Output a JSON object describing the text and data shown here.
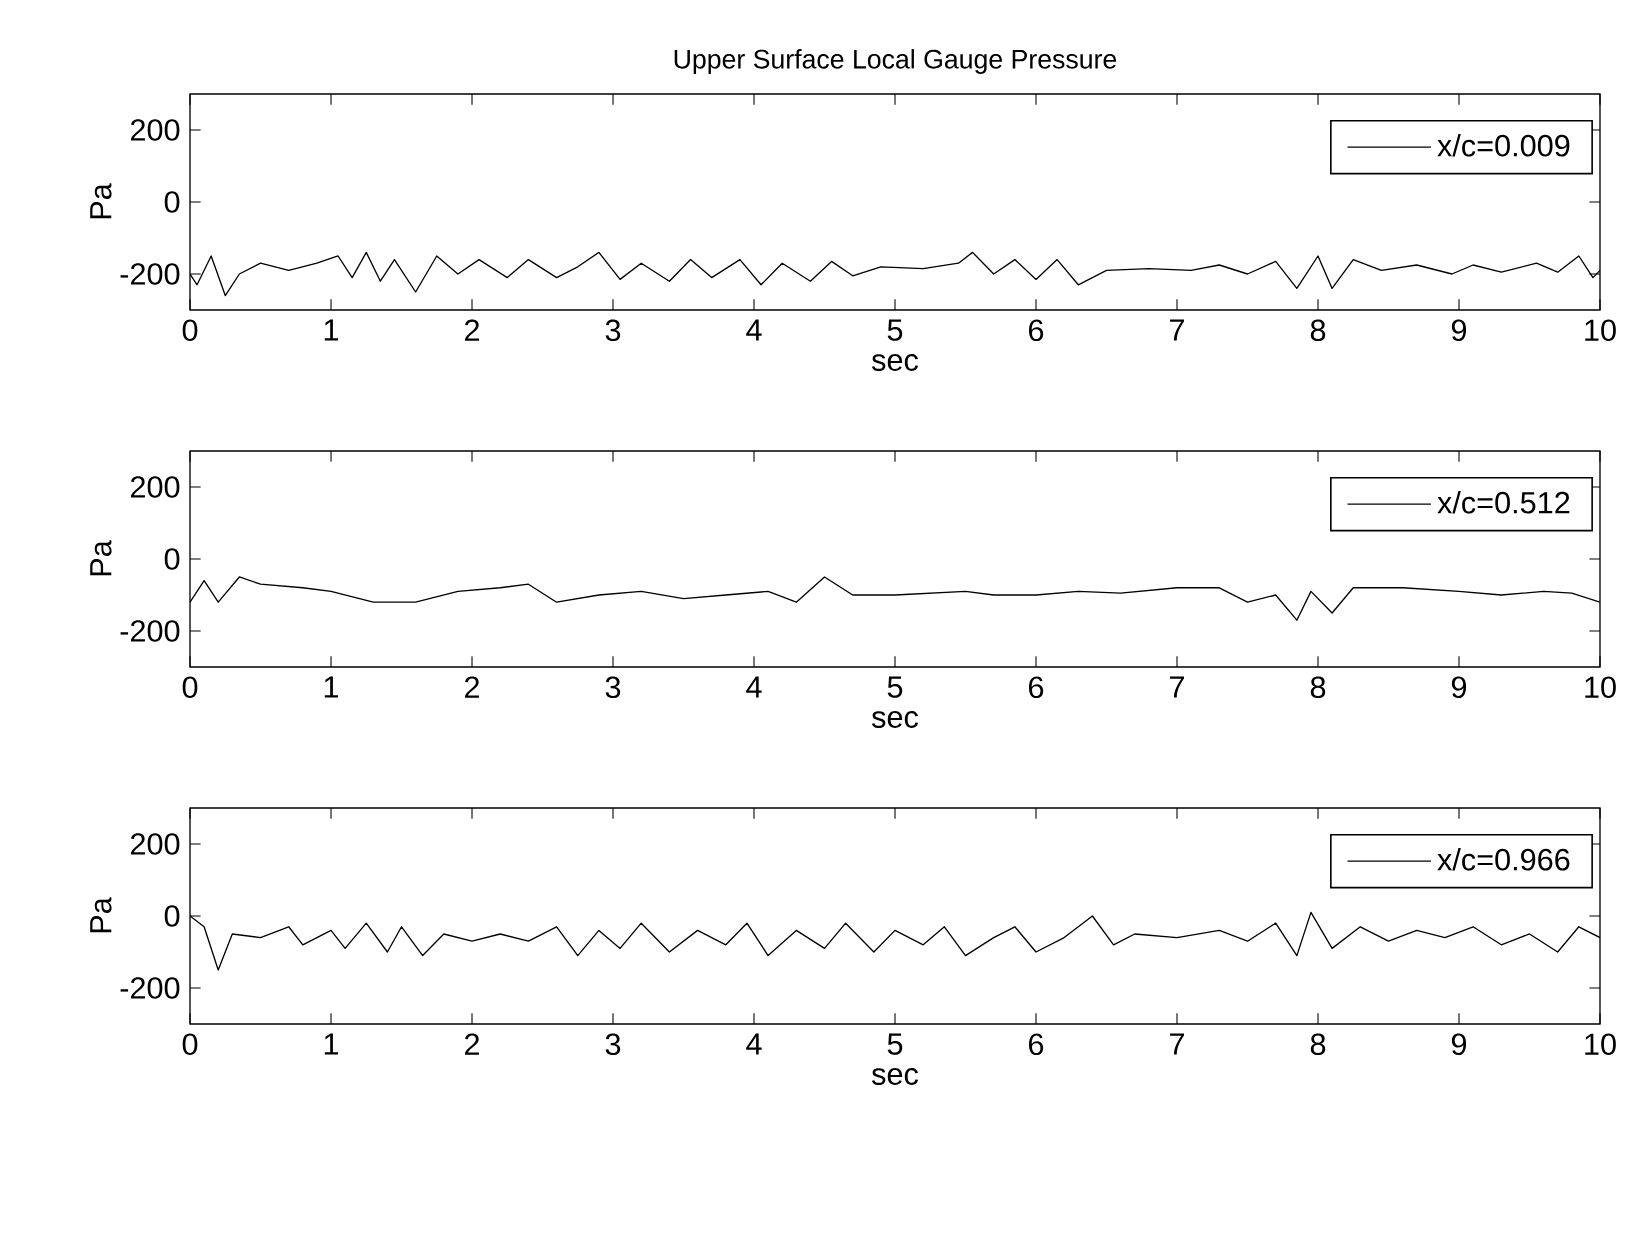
{
  "chart_data": [
    {
      "type": "line",
      "title": "Upper Surface Local Gauge Pressure",
      "xlabel": "sec",
      "ylabel": "Pa",
      "legend": "top right",
      "grid": false,
      "xlim": [
        0,
        10
      ],
      "ylim": [
        -300,
        300
      ],
      "xticks": [
        0,
        1,
        2,
        3,
        4,
        5,
        6,
        7,
        8,
        9,
        10
      ],
      "yticks": [
        -200,
        0,
        200
      ],
      "x": [
        0,
        0.05,
        0.15,
        0.25,
        0.35,
        0.5,
        0.7,
        0.9,
        1.05,
        1.15,
        1.25,
        1.35,
        1.45,
        1.6,
        1.75,
        1.9,
        2.05,
        2.25,
        2.4,
        2.6,
        2.75,
        2.9,
        3.05,
        3.2,
        3.4,
        3.55,
        3.7,
        3.9,
        4.05,
        4.2,
        4.4,
        4.55,
        4.7,
        4.9,
        5.2,
        5.45,
        5.55,
        5.7,
        5.85,
        6.0,
        6.15,
        6.3,
        6.5,
        6.8,
        7.1,
        7.3,
        7.5,
        7.7,
        7.85,
        8.0,
        8.1,
        8.25,
        8.45,
        8.7,
        8.95,
        9.1,
        9.3,
        9.55,
        9.7,
        9.85,
        9.95,
        10
      ],
      "series": [
        {
          "name": "x/c=0.009",
          "color": "#000000",
          "values": [
            -200,
            -230,
            -150,
            -260,
            -200,
            -170,
            -190,
            -170,
            -150,
            -210,
            -140,
            -220,
            -160,
            -250,
            -150,
            -200,
            -160,
            -210,
            -160,
            -210,
            -180,
            -140,
            -215,
            -170,
            -220,
            -160,
            -210,
            -160,
            -230,
            -170,
            -220,
            -165,
            -205,
            -180,
            -185,
            -170,
            -140,
            -200,
            -160,
            -215,
            -160,
            -230,
            -190,
            -185,
            -190,
            -175,
            -200,
            -165,
            -240,
            -150,
            -240,
            -160,
            -190,
            -175,
            -200,
            -175,
            -195,
            -170,
            -195,
            -150,
            -210,
            -190
          ]
        }
      ]
    },
    {
      "type": "line",
      "xlabel": "sec",
      "ylabel": "Pa",
      "legend": "top right",
      "grid": false,
      "xlim": [
        0,
        10
      ],
      "ylim": [
        -300,
        300
      ],
      "xticks": [
        0,
        1,
        2,
        3,
        4,
        5,
        6,
        7,
        8,
        9,
        10
      ],
      "yticks": [
        -200,
        0,
        200
      ],
      "x": [
        0,
        0.1,
        0.2,
        0.35,
        0.5,
        0.8,
        1.0,
        1.3,
        1.6,
        1.9,
        2.2,
        2.4,
        2.6,
        2.9,
        3.2,
        3.5,
        3.8,
        4.1,
        4.3,
        4.5,
        4.7,
        5.0,
        5.5,
        5.7,
        6.0,
        6.3,
        6.6,
        7.0,
        7.3,
        7.5,
        7.7,
        7.85,
        7.95,
        8.1,
        8.25,
        8.6,
        9.0,
        9.3,
        9.6,
        9.8,
        10
      ],
      "series": [
        {
          "name": "x/c=0.512",
          "color": "#000000",
          "values": [
            -120,
            -60,
            -120,
            -50,
            -70,
            -80,
            -90,
            -120,
            -120,
            -90,
            -80,
            -70,
            -120,
            -100,
            -90,
            -110,
            -100,
            -90,
            -120,
            -50,
            -100,
            -100,
            -90,
            -100,
            -100,
            -90,
            -95,
            -80,
            -80,
            -120,
            -100,
            -170,
            -90,
            -150,
            -80,
            -80,
            -90,
            -100,
            -90,
            -95,
            -120
          ]
        }
      ]
    },
    {
      "type": "line",
      "xlabel": "sec",
      "ylabel": "Pa",
      "legend": "top right",
      "grid": false,
      "xlim": [
        0,
        10
      ],
      "ylim": [
        -300,
        300
      ],
      "xticks": [
        0,
        1,
        2,
        3,
        4,
        5,
        6,
        7,
        8,
        9,
        10
      ],
      "yticks": [
        -200,
        0,
        200
      ],
      "x": [
        0,
        0.1,
        0.2,
        0.3,
        0.5,
        0.7,
        0.8,
        1.0,
        1.1,
        1.25,
        1.4,
        1.5,
        1.65,
        1.8,
        2.0,
        2.2,
        2.4,
        2.6,
        2.75,
        2.9,
        3.05,
        3.2,
        3.4,
        3.6,
        3.8,
        3.95,
        4.1,
        4.3,
        4.5,
        4.65,
        4.85,
        5.0,
        5.2,
        5.35,
        5.5,
        5.7,
        5.85,
        6.0,
        6.2,
        6.4,
        6.55,
        6.7,
        7.0,
        7.3,
        7.5,
        7.7,
        7.85,
        7.95,
        8.1,
        8.3,
        8.5,
        8.7,
        8.9,
        9.1,
        9.3,
        9.5,
        9.7,
        9.85,
        10
      ],
      "series": [
        {
          "name": "x/c=0.966",
          "color": "#000000",
          "values": [
            0,
            -30,
            -150,
            -50,
            -60,
            -30,
            -80,
            -40,
            -90,
            -20,
            -100,
            -30,
            -110,
            -50,
            -70,
            -50,
            -70,
            -30,
            -110,
            -40,
            -90,
            -20,
            -100,
            -40,
            -80,
            -20,
            -110,
            -40,
            -90,
            -20,
            -100,
            -40,
            -80,
            -30,
            -110,
            -60,
            -30,
            -100,
            -60,
            0,
            -80,
            -50,
            -60,
            -40,
            -70,
            -20,
            -110,
            10,
            -90,
            -30,
            -70,
            -40,
            -60,
            -30,
            -80,
            -50,
            -100,
            -30,
            -60
          ]
        }
      ]
    }
  ]
}
